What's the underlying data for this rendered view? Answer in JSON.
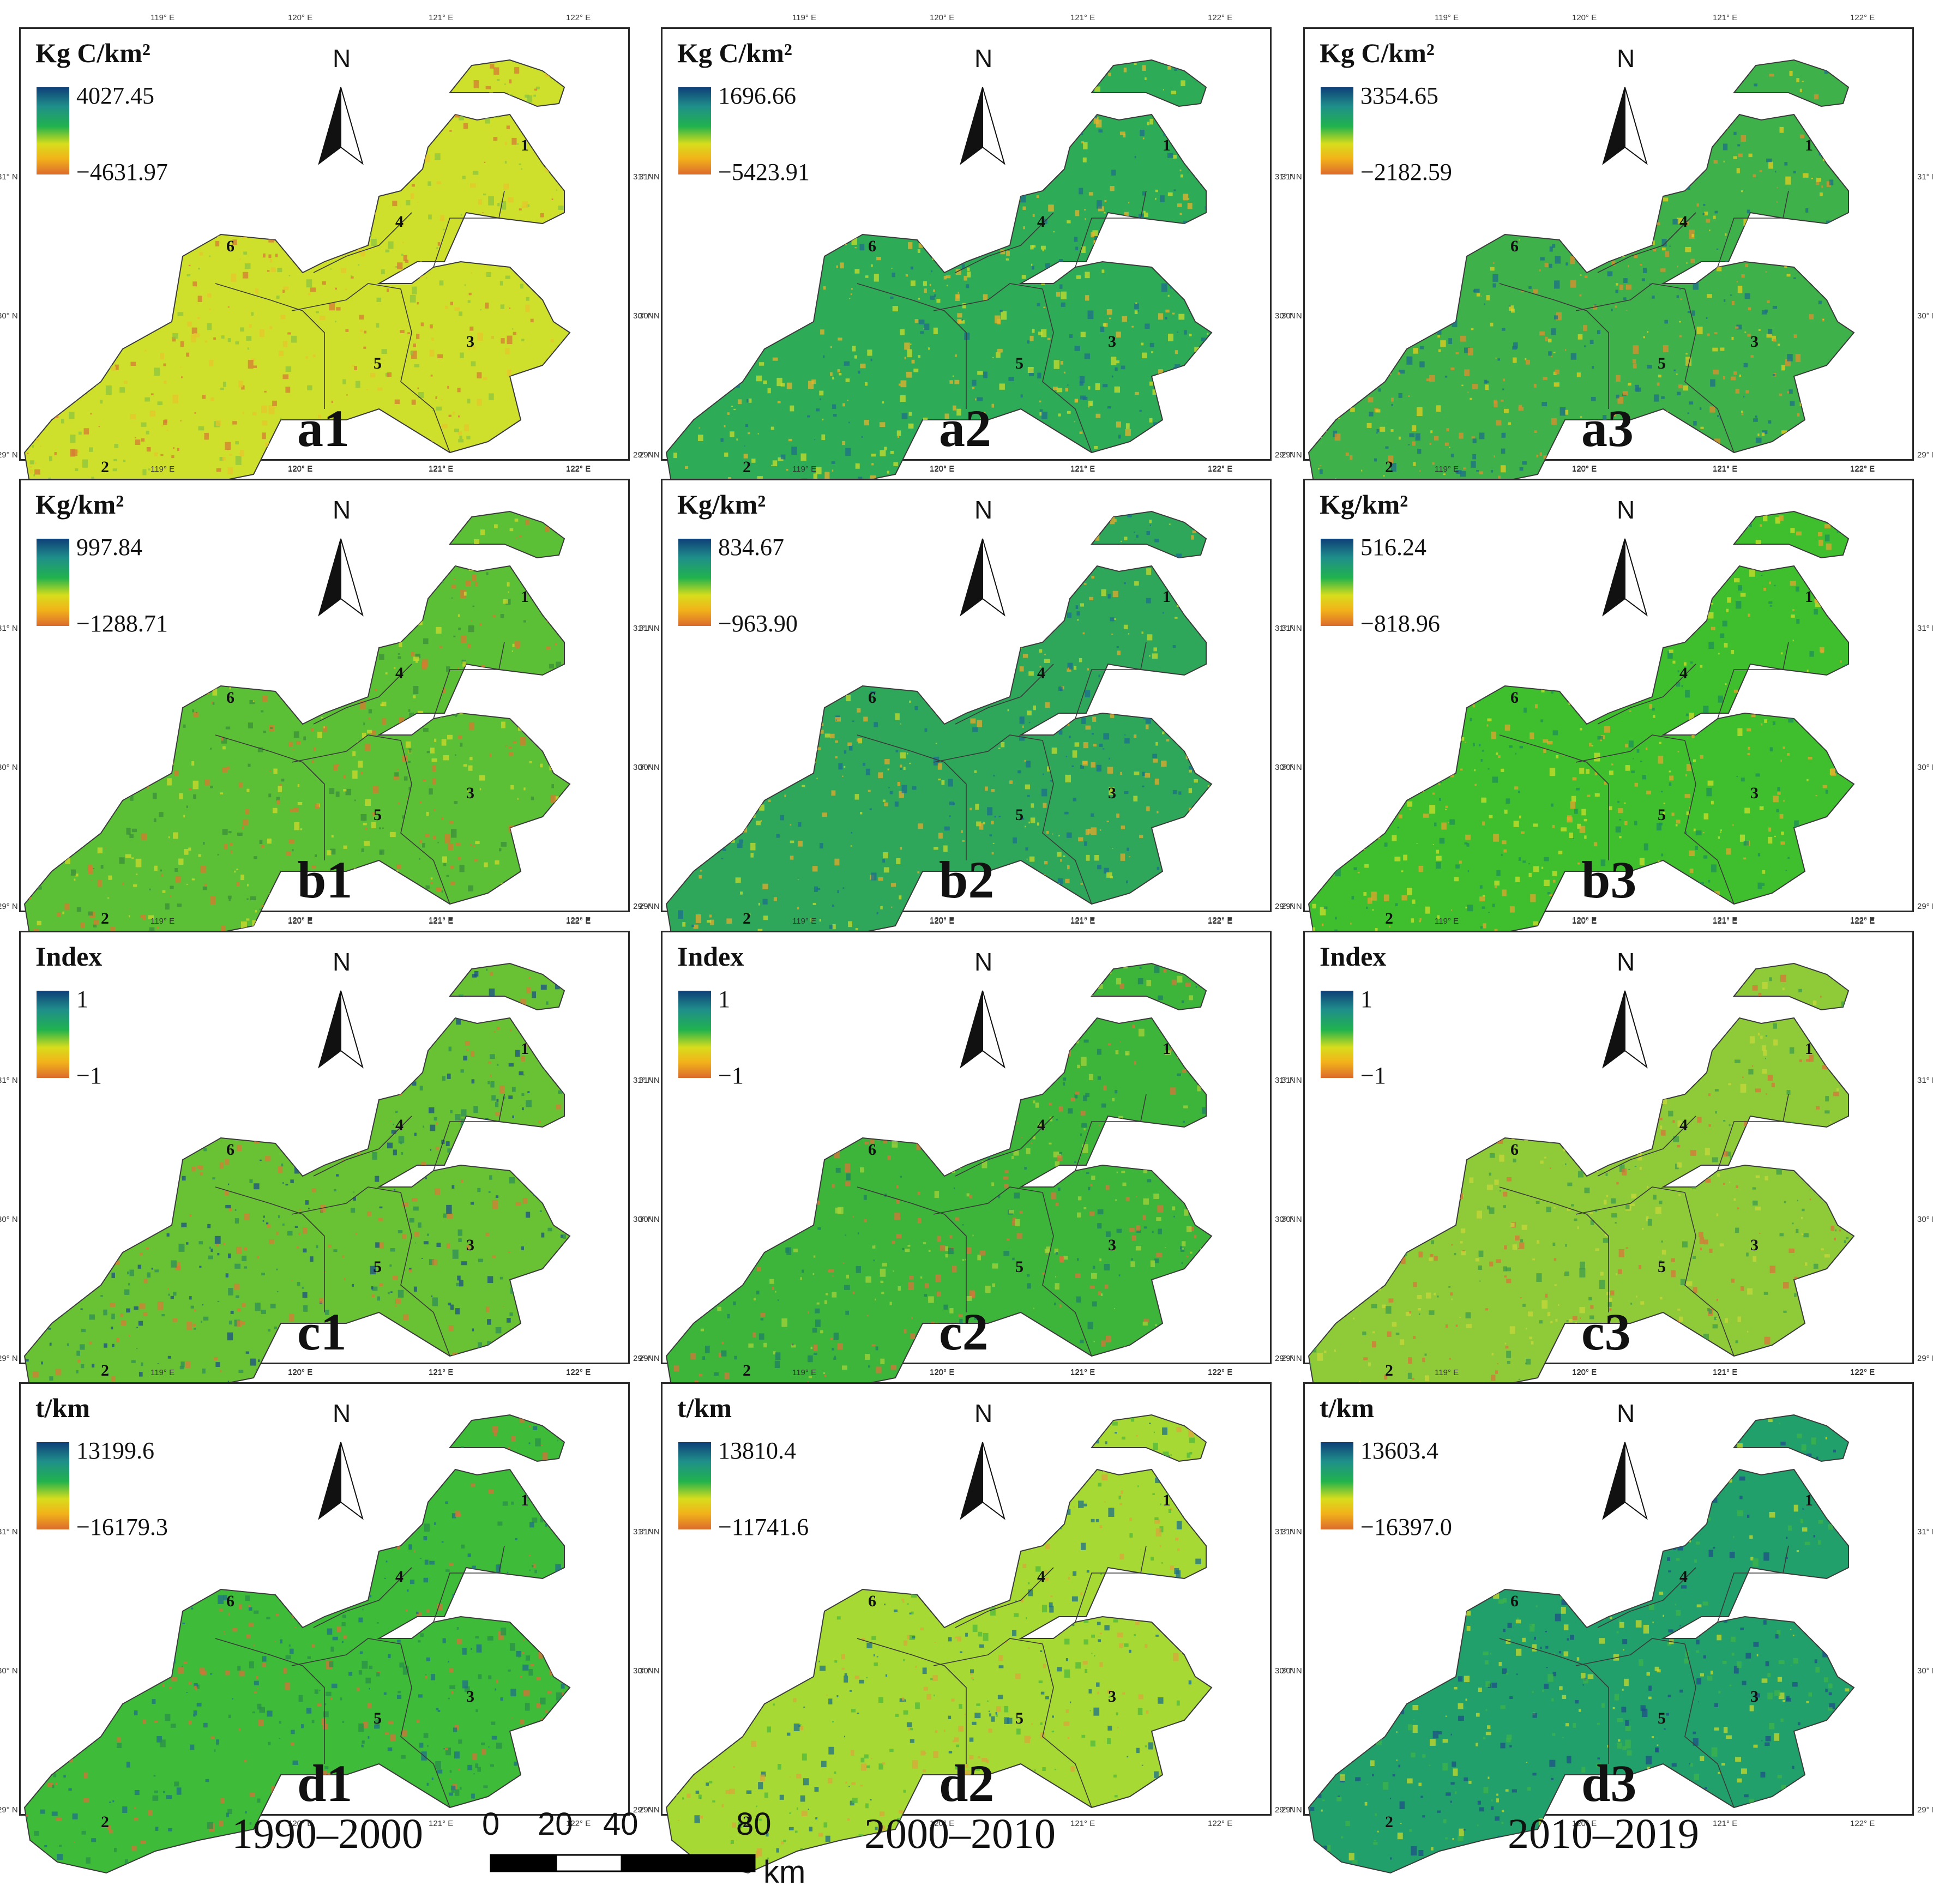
{
  "figure": {
    "periods": [
      "1990–2000",
      "2000–2010",
      "2010–2019"
    ],
    "scale_bar": {
      "ticks": [
        "0",
        "20",
        "40",
        "80"
      ],
      "unit": "km"
    }
  },
  "axes": {
    "longitudes": [
      "119° E",
      "120° E",
      "121° E",
      "122° E"
    ],
    "latitudes": [
      "31° N",
      "30° N",
      "29° N"
    ]
  },
  "north_label": "N",
  "region_ids": [
    "1",
    "2",
    "3",
    "4",
    "5",
    "6"
  ],
  "legend_colors": [
    "#0e3f78",
    "#1f8f8a",
    "#21b24d",
    "#d8dd1c",
    "#f2b21a",
    "#dc6b2c"
  ],
  "panels": [
    {
      "id": "a1",
      "unit": "Kg C/km²",
      "max": "4027.45",
      "min": "−4631.97",
      "base_color": "#cfe02c",
      "speckle": [
        "#e6c52a",
        "#d77b34",
        "#8bc63f"
      ]
    },
    {
      "id": "a2",
      "unit": "Kg C/km²",
      "max": "1696.66",
      "min": "−5423.91",
      "base_color": "#2eab56",
      "speckle": [
        "#1d6f8a",
        "#c9dc2d",
        "#e8b32e"
      ]
    },
    {
      "id": "a3",
      "unit": "Kg C/km²",
      "max": "3354.65",
      "min": "−2182.59",
      "base_color": "#3fb14a",
      "speckle": [
        "#e6cf1f",
        "#1d6f8a",
        "#e28d2e"
      ]
    },
    {
      "id": "b1",
      "unit": "Kg/km²",
      "max": "997.84",
      "min": "−1288.71",
      "base_color": "#5cc037",
      "speckle": [
        "#3a8f3a",
        "#cfd82b",
        "#d9782f"
      ]
    },
    {
      "id": "b2",
      "unit": "Kg/km²",
      "max": "834.67",
      "min": "−963.90",
      "base_color": "#2fa75a",
      "speckle": [
        "#c6da2c",
        "#e6a82d",
        "#1b6e8d"
      ]
    },
    {
      "id": "b3",
      "unit": "Kg/km²",
      "max": "516.24",
      "min": "−818.96",
      "base_color": "#3fbf2e",
      "speckle": [
        "#cddd29",
        "#e4a42d",
        "#1f8f5a"
      ]
    },
    {
      "id": "c1",
      "unit": "Index",
      "max": "1",
      "min": "−1",
      "base_color": "#69c234",
      "speckle": [
        "#2f8e5a",
        "#d77b34",
        "#1b4f86"
      ]
    },
    {
      "id": "c2",
      "unit": "Index",
      "max": "1",
      "min": "−1",
      "base_color": "#3db43a",
      "speckle": [
        "#d8743a",
        "#1d7f66",
        "#a5d33b"
      ]
    },
    {
      "id": "c3",
      "unit": "Index",
      "max": "1",
      "min": "−1",
      "base_color": "#8fcb39",
      "speckle": [
        "#d8743a",
        "#3e9b4b",
        "#c7d73a"
      ]
    },
    {
      "id": "d1",
      "unit": "t/km",
      "max": "13199.6",
      "min": "−16179.3",
      "base_color": "#3dbb39",
      "speckle": [
        "#2a8f4a",
        "#1d6f8a",
        "#d8703a"
      ]
    },
    {
      "id": "d2",
      "unit": "t/km",
      "max": "13810.4",
      "min": "−11741.6",
      "base_color": "#a6d933",
      "speckle": [
        "#4fb83e",
        "#1d6f8a",
        "#d9a53a"
      ]
    },
    {
      "id": "d3",
      "unit": "t/km",
      "max": "13603.4",
      "min": "−16397.0",
      "base_color": "#21a06c",
      "speckle": [
        "#3db34a",
        "#c9da2b",
        "#1d4f86"
      ]
    }
  ]
}
